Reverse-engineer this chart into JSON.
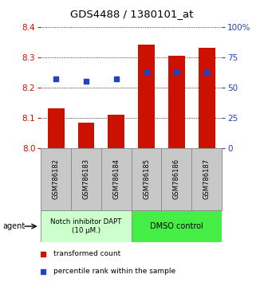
{
  "title": "GDS4488 / 1380101_at",
  "categories": [
    "GSM786182",
    "GSM786183",
    "GSM786184",
    "GSM786185",
    "GSM786186",
    "GSM786187"
  ],
  "bar_values": [
    8.13,
    8.085,
    8.11,
    8.34,
    8.305,
    8.33
  ],
  "bar_bottom": 8.0,
  "percentile_values": [
    57,
    55,
    57,
    62,
    63,
    62
  ],
  "bar_color": "#cc1100",
  "dot_color": "#2244bb",
  "ylim_left": [
    8.0,
    8.4
  ],
  "ylim_right": [
    0,
    100
  ],
  "yticks_left": [
    8.0,
    8.1,
    8.2,
    8.3,
    8.4
  ],
  "yticks_right": [
    0,
    25,
    50,
    75,
    100
  ],
  "ytick_labels_right": [
    "0",
    "25",
    "50",
    "75",
    "100%"
  ],
  "group1_label": "Notch inhibitor DAPT\n(10 μM.)",
  "group2_label": "DMSO control",
  "group1_color": "#ccffcc",
  "group2_color": "#44ee44",
  "agent_label": "agent",
  "legend_bar_label": "transformed count",
  "legend_dot_label": "percentile rank within the sample",
  "bar_width": 0.55,
  "label_area_color": "#c8c8c8",
  "title_fontsize": 9.5
}
